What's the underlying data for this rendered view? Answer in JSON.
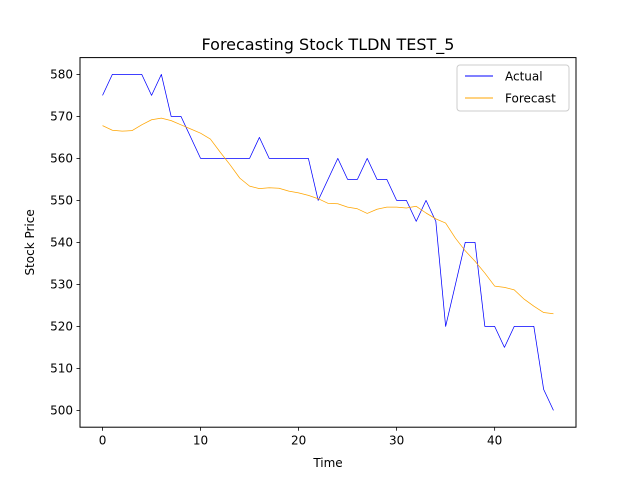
{
  "chart_data": {
    "type": "line",
    "title": "Forecasting Stock TLDN TEST_5",
    "xlabel": "Time",
    "ylabel": "Stock Price",
    "xlim": [
      -2.3,
      48.3
    ],
    "ylim": [
      496,
      584
    ],
    "xticks": [
      0,
      10,
      20,
      30,
      40
    ],
    "yticks": [
      500,
      510,
      520,
      530,
      540,
      550,
      560,
      570,
      580
    ],
    "grid": false,
    "legend_position": "upper right",
    "series": [
      {
        "name": "Actual",
        "color": "#0000ff",
        "x": [
          0,
          1,
          2,
          3,
          4,
          5,
          6,
          7,
          8,
          9,
          10,
          11,
          12,
          13,
          14,
          15,
          16,
          17,
          18,
          19,
          20,
          21,
          22,
          23,
          24,
          25,
          26,
          27,
          28,
          29,
          30,
          31,
          32,
          33,
          34,
          35,
          36,
          37,
          38,
          39,
          40,
          41,
          42,
          43,
          44,
          45,
          46
        ],
        "values": [
          575,
          580,
          580,
          580,
          580,
          575,
          580,
          570,
          570,
          565,
          560,
          560,
          560,
          560,
          560,
          560,
          565,
          560,
          560,
          560,
          560,
          560,
          550,
          555,
          560,
          555,
          555,
          560,
          555,
          555,
          550,
          550,
          545,
          550,
          545,
          520,
          530,
          540,
          540,
          520,
          520,
          515,
          520,
          520,
          520,
          505,
          500
        ]
      },
      {
        "name": "Forecast",
        "color": "#ffa500",
        "x": [
          0,
          1,
          2,
          3,
          4,
          5,
          6,
          7,
          8,
          9,
          10,
          11,
          12,
          13,
          14,
          15,
          16,
          17,
          18,
          19,
          20,
          21,
          22,
          23,
          24,
          25,
          26,
          27,
          28,
          29,
          30,
          31,
          32,
          33,
          34,
          35,
          36,
          37,
          38,
          39,
          40,
          41,
          42,
          43,
          44,
          45,
          46
        ],
        "values": [
          567.8,
          566.7,
          566.5,
          566.6,
          568.0,
          569.2,
          569.6,
          569.0,
          568.0,
          567.0,
          566.0,
          564.6,
          561.5,
          558.5,
          555.3,
          553.4,
          552.8,
          553.0,
          552.9,
          552.2,
          551.8,
          551.2,
          550.4,
          549.3,
          549.2,
          548.4,
          548.0,
          546.9,
          547.9,
          548.4,
          548.4,
          548.2,
          548.6,
          547.0,
          545.6,
          544.6,
          541.0,
          538.0,
          535.5,
          532.7,
          529.6,
          529.3,
          528.7,
          526.5,
          524.8,
          523.3,
          523.0
        ]
      }
    ]
  }
}
